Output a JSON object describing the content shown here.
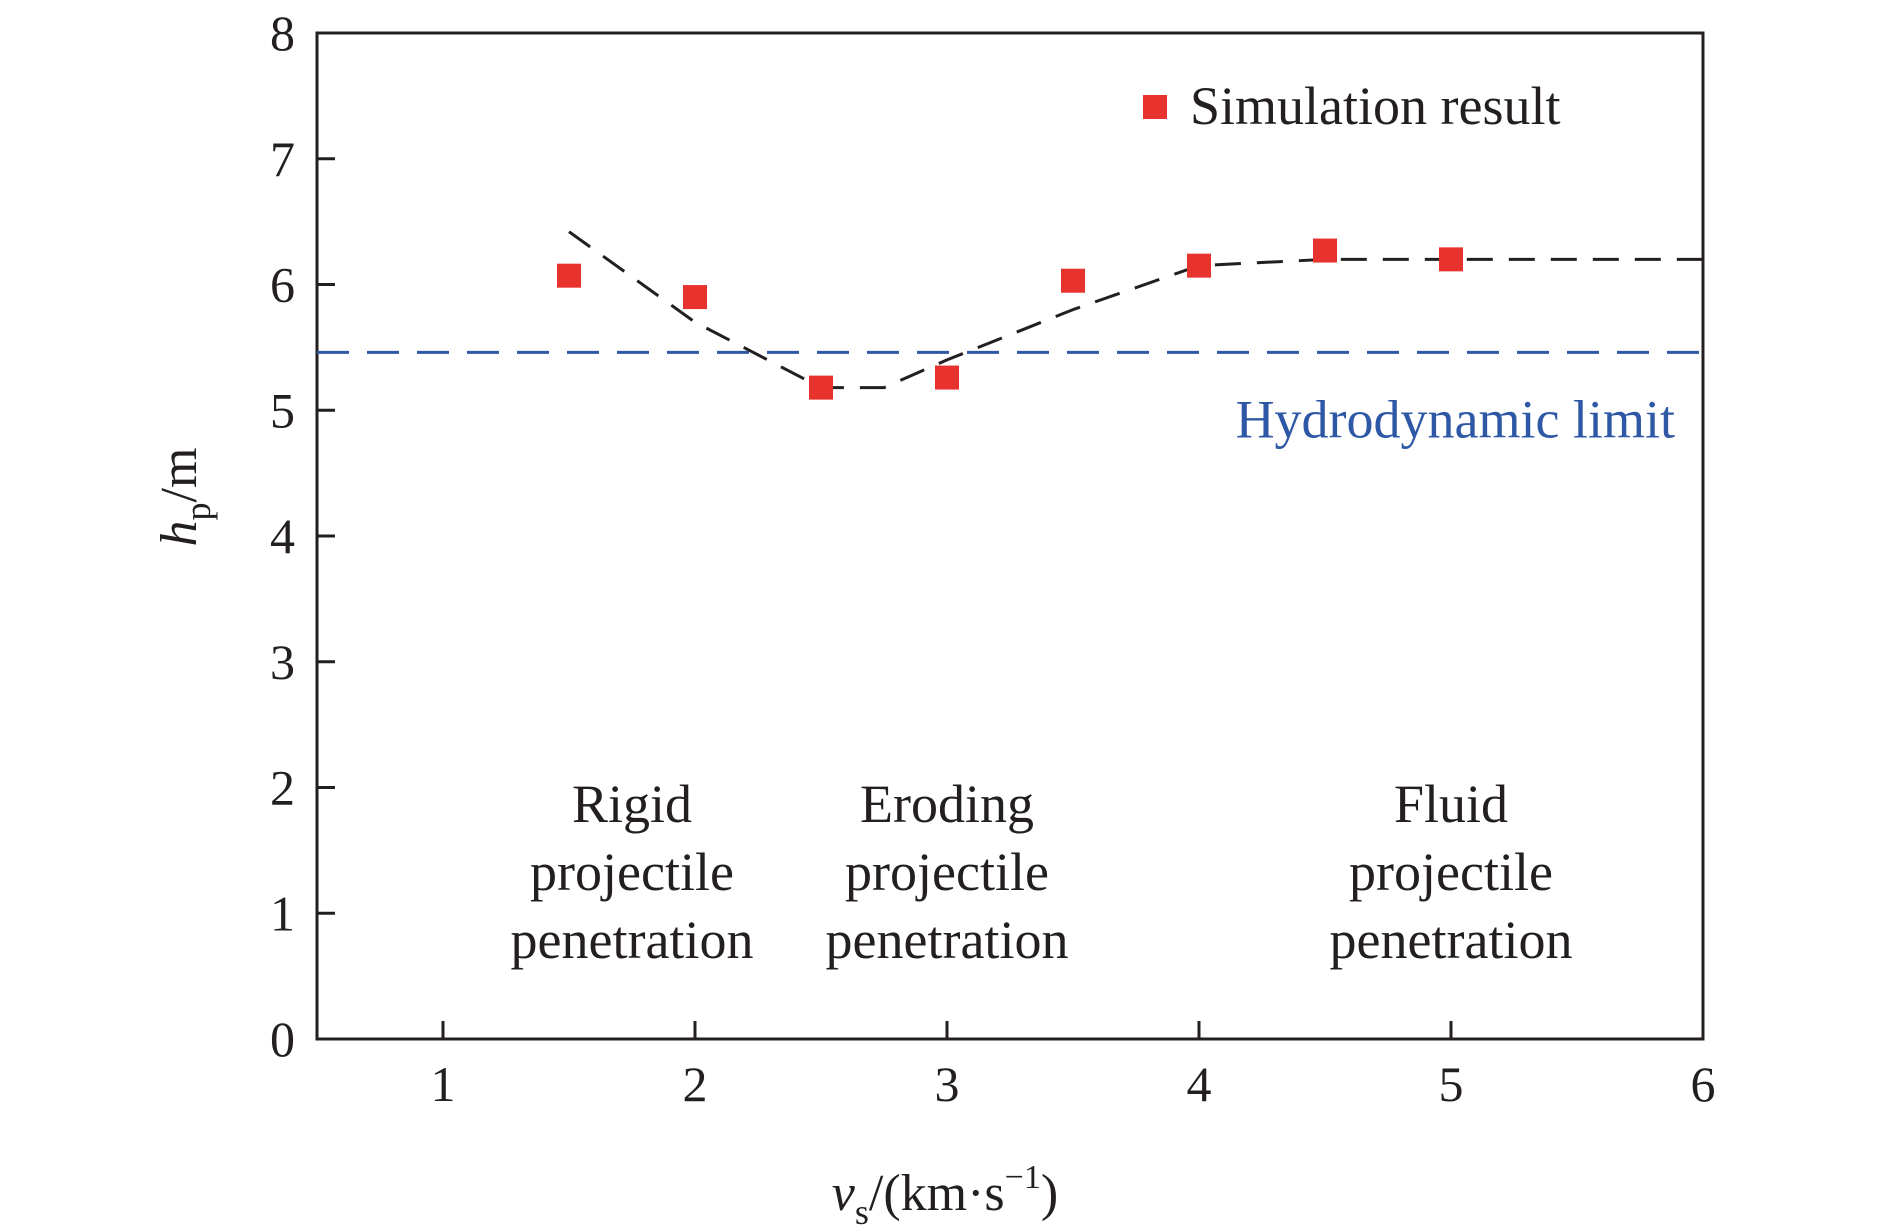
{
  "chart_data": {
    "type": "scatter",
    "xlabel": {
      "symbol": "v",
      "subscript": "s",
      "unit_prefix": "/(km·s",
      "unit_exp": "−1",
      "unit_suffix": ")"
    },
    "ylabel": {
      "symbol": "h",
      "subscript": "p",
      "unit": "/m"
    },
    "xlim": [
      0.5,
      6
    ],
    "ylim": [
      0,
      8
    ],
    "xticks": [
      "1",
      "2",
      "3",
      "4",
      "5",
      "6"
    ],
    "yticks": [
      "0",
      "1",
      "2",
      "3",
      "4",
      "5",
      "6",
      "7",
      "8"
    ],
    "grid": false,
    "legend": {
      "position": "top-right",
      "entries": [
        "Simulation result"
      ]
    },
    "series": [
      {
        "name": "Simulation result",
        "marker": "square",
        "color": "#e8322d",
        "points": [
          {
            "x": 1.5,
            "y": 6.07
          },
          {
            "x": 2.0,
            "y": 5.9
          },
          {
            "x": 2.5,
            "y": 5.18
          },
          {
            "x": 3.0,
            "y": 5.26
          },
          {
            "x": 3.5,
            "y": 6.03
          },
          {
            "x": 4.0,
            "y": 6.15
          },
          {
            "x": 4.5,
            "y": 6.27
          },
          {
            "x": 5.0,
            "y": 6.2
          }
        ]
      },
      {
        "style": "dashed",
        "color": "#231f20",
        "points": [
          {
            "x": 1.5,
            "y": 6.42
          },
          {
            "x": 2.0,
            "y": 5.7
          },
          {
            "x": 2.5,
            "y": 5.18
          },
          {
            "x": 2.75,
            "y": 5.18
          },
          {
            "x": 3.0,
            "y": 5.4
          },
          {
            "x": 3.5,
            "y": 5.8
          },
          {
            "x": 4.0,
            "y": 6.15
          },
          {
            "x": 4.5,
            "y": 6.2
          },
          {
            "x": 6.0,
            "y": 6.2
          }
        ]
      }
    ],
    "reference_line": {
      "y": 5.46,
      "label": "Hydrodynamic limit",
      "color": "#2e58a5",
      "style": "dashed"
    },
    "annotations": [
      {
        "x": 1.75,
        "lines": [
          "Rigid",
          "projectile",
          "penetration"
        ]
      },
      {
        "x": 3.0,
        "lines": [
          "Eroding",
          "projectile",
          "penetration"
        ]
      },
      {
        "x": 5.0,
        "lines": [
          "Fluid",
          "projectile",
          "penetration"
        ]
      }
    ]
  }
}
